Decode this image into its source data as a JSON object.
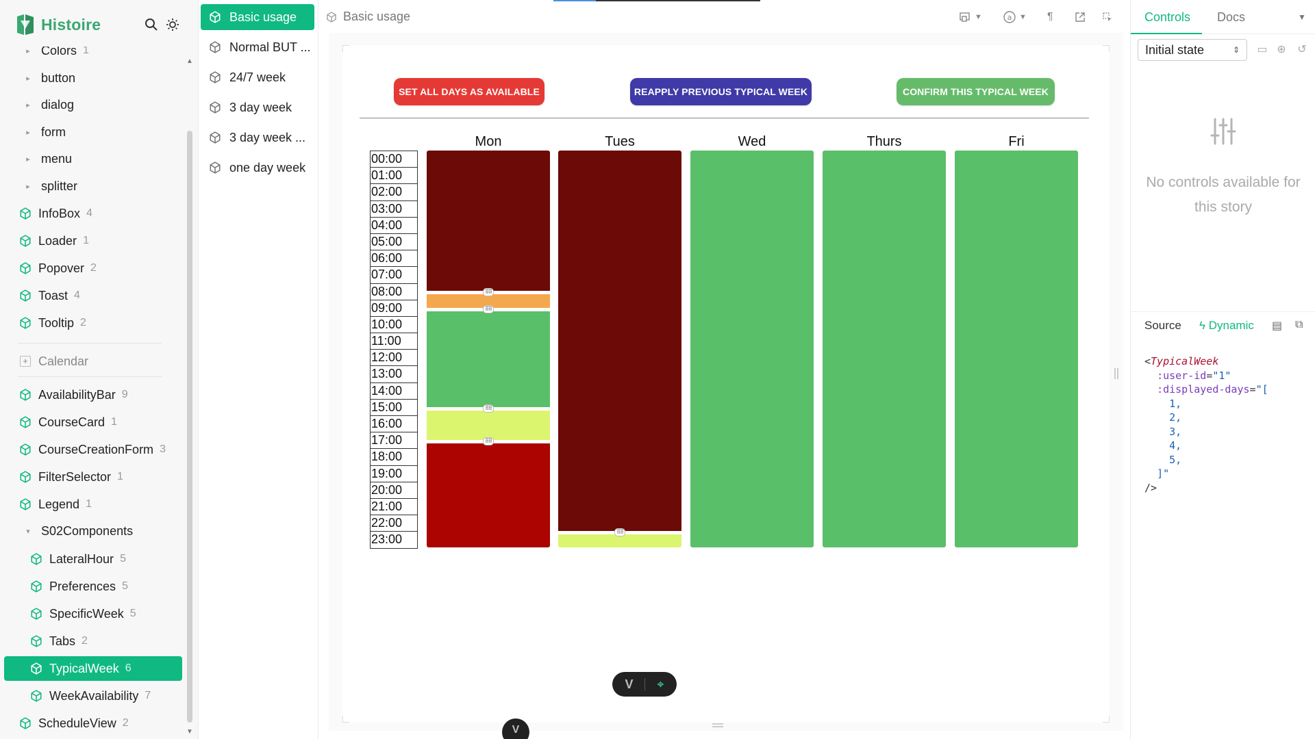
{
  "app": {
    "name": "Histoire"
  },
  "sidebar": {
    "items": [
      {
        "label": "Colors",
        "count": "1",
        "kind": "folder"
      },
      {
        "label": "button",
        "count": "",
        "kind": "folder"
      },
      {
        "label": "dialog",
        "count": "",
        "kind": "folder"
      },
      {
        "label": "form",
        "count": "",
        "kind": "folder"
      },
      {
        "label": "menu",
        "count": "",
        "kind": "folder"
      },
      {
        "label": "splitter",
        "count": "",
        "kind": "folder"
      },
      {
        "label": "InfoBox",
        "count": "4",
        "kind": "story"
      },
      {
        "label": "Loader",
        "count": "1",
        "kind": "story"
      },
      {
        "label": "Popover",
        "count": "2",
        "kind": "story"
      },
      {
        "label": "Toast",
        "count": "4",
        "kind": "story"
      },
      {
        "label": "Tooltip",
        "count": "2",
        "kind": "story"
      },
      {
        "label": "Calendar",
        "count": "",
        "kind": "group"
      },
      {
        "label": "AvailabilityBar",
        "count": "9",
        "kind": "story"
      },
      {
        "label": "CourseCard",
        "count": "1",
        "kind": "story"
      },
      {
        "label": "CourseCreationForm",
        "count": "3",
        "kind": "story"
      },
      {
        "label": "FilterSelector",
        "count": "1",
        "kind": "story"
      },
      {
        "label": "Legend",
        "count": "1",
        "kind": "story"
      },
      {
        "label": "S02Components",
        "count": "",
        "kind": "open-folder"
      },
      {
        "label": "LateralHour",
        "count": "5",
        "kind": "story-nested"
      },
      {
        "label": "Preferences",
        "count": "5",
        "kind": "story-nested"
      },
      {
        "label": "SpecificWeek",
        "count": "5",
        "kind": "story-nested"
      },
      {
        "label": "Tabs",
        "count": "2",
        "kind": "story-nested"
      },
      {
        "label": "TypicalWeek",
        "count": "6",
        "kind": "story-nested-selected"
      },
      {
        "label": "WeekAvailability",
        "count": "7",
        "kind": "story-nested"
      },
      {
        "label": "ScheduleView",
        "count": "2",
        "kind": "story"
      }
    ]
  },
  "variants": [
    {
      "label": "Basic usage",
      "selected": true
    },
    {
      "label": "Normal BUT ...",
      "selected": false
    },
    {
      "label": "24/7 week",
      "selected": false
    },
    {
      "label": "3 day week",
      "selected": false
    },
    {
      "label": "3 day week ...",
      "selected": false
    },
    {
      "label": "one day week",
      "selected": false
    }
  ],
  "toolbar": {
    "breadcrumb": "Basic usage"
  },
  "week": {
    "buttons": {
      "set_all": "SET ALL DAYS AS AVAILABLE",
      "reapply": "REAPPLY PREVIOUS TYPICAL WEEK",
      "confirm": "CONFIRM THIS TYPICAL WEEK"
    },
    "colors": {
      "set_all": "#e53935",
      "reapply": "#3f3aa8",
      "confirm": "#66bb6a",
      "unavailable": "#6b0a07",
      "preferred": "#f4a84e",
      "available": "#5abf69",
      "maybe": "#dcf56f",
      "busy": "#ac0400"
    },
    "days": [
      "Mon",
      "Tues",
      "Wed",
      "Thurs",
      "Fri"
    ],
    "hours": [
      "00:00",
      "01:00",
      "02:00",
      "03:00",
      "04:00",
      "05:00",
      "06:00",
      "07:00",
      "08:00",
      "09:00",
      "10:00",
      "11:00",
      "12:00",
      "13:00",
      "14:00",
      "15:00",
      "16:00",
      "17:00",
      "18:00",
      "19:00",
      "20:00",
      "21:00",
      "22:00",
      "23:00"
    ],
    "schedule": [
      [
        {
          "from": 0,
          "to": 8.5,
          "state": "unavailable"
        },
        {
          "from": 8.5,
          "to": 9.5,
          "state": "preferred"
        },
        {
          "from": 9.5,
          "to": 15.5,
          "state": "available"
        },
        {
          "from": 15.5,
          "to": 17.5,
          "state": "maybe"
        },
        {
          "from": 17.5,
          "to": 24,
          "state": "busy"
        }
      ],
      [
        {
          "from": 0,
          "to": 23,
          "state": "unavailable"
        },
        {
          "from": 23,
          "to": 24,
          "state": "maybe"
        }
      ],
      [
        {
          "from": 0,
          "to": 24,
          "state": "available"
        }
      ],
      [
        {
          "from": 0,
          "to": 24,
          "state": "available"
        }
      ],
      [
        {
          "from": 0,
          "to": 24,
          "state": "available"
        }
      ]
    ]
  },
  "rpanel": {
    "tabs": [
      "Controls",
      "Docs"
    ],
    "state_select": "Initial state",
    "no_controls": "No controls available for this story",
    "source_label": "Source",
    "dynamic_label": "Dynamic",
    "code": {
      "tag": "TypicalWeek",
      "user_id_attr": ":user-id",
      "user_id_val": "\"1\"",
      "days_attr": ":displayed-days",
      "days_open": "\"[",
      "days": [
        "1,",
        "2,",
        "3,",
        "4,",
        "5,"
      ],
      "days_close": "]\"",
      "end": "/>"
    }
  }
}
